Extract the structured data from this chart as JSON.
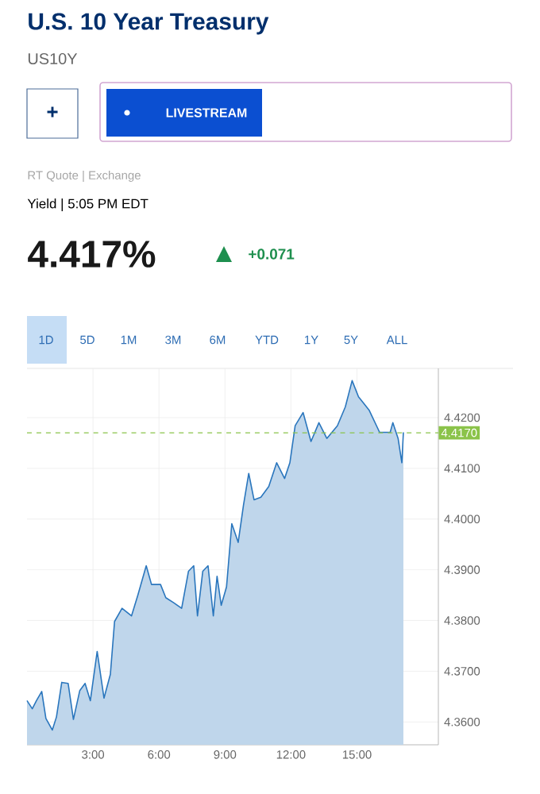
{
  "chart_data": {
    "type": "area",
    "title": "U.S. 10 Year Treasury",
    "subtitle": "US10Y",
    "annotations": [
      "+",
      "LIVESTREAM",
      "RT Quote | Exchange",
      "Yield | 5:05 PM EDT",
      "4.417%",
      "+0.071",
      "1D",
      "5D",
      "1M",
      "3M",
      "6M",
      "YTD",
      "1Y",
      "5Y",
      "ALL"
    ],
    "x": [
      0.0,
      0.24,
      0.43,
      0.67,
      0.86,
      1.15,
      1.34,
      1.58,
      1.87,
      2.11,
      2.4,
      2.64,
      2.88,
      3.19,
      3.5,
      3.79,
      3.98,
      4.32,
      4.75,
      5.04,
      5.42,
      5.66,
      6.07,
      6.31,
      6.67,
      7.03,
      7.34,
      7.58,
      7.75,
      7.99,
      8.23,
      8.47,
      8.64,
      8.83,
      9.07,
      9.31,
      9.6,
      9.84,
      10.08,
      10.32,
      10.63,
      10.99,
      11.35,
      11.71,
      11.95,
      12.19,
      12.55,
      12.91,
      13.27,
      13.63,
      14.11,
      14.47,
      14.78,
      15.07,
      15.55,
      16.03,
      16.51,
      16.63,
      16.87,
      17.04,
      17.11
    ],
    "series": [
      {
        "color": "#2a76bd",
        "values": [
          4.3642,
          4.3626,
          4.3642,
          4.366,
          4.3607,
          4.3584,
          4.361,
          4.3678,
          4.3676,
          4.3605,
          4.3662,
          4.3676,
          4.3642,
          4.3739,
          4.3647,
          4.3694,
          4.3798,
          4.3824,
          4.3809,
          4.385,
          4.3908,
          4.3871,
          4.3871,
          4.3845,
          4.3835,
          4.3824,
          4.3897,
          4.3908,
          4.3809,
          4.3897,
          4.3908,
          4.3809,
          4.3887,
          4.383,
          4.3866,
          4.3991,
          4.3954,
          4.4027,
          4.409,
          4.4038,
          4.4043,
          4.4064,
          4.4111,
          4.408,
          4.4111,
          4.4184,
          4.421,
          4.4153,
          4.419,
          4.4159,
          4.4184,
          4.4221,
          4.4273,
          4.4241,
          4.4215,
          4.4171,
          4.4171,
          4.419,
          4.4159,
          4.4111,
          4.4171
        ]
      }
    ],
    "xlim": [
      0,
      18.7
    ],
    "ylim": [
      4.3555,
      4.4297
    ],
    "xticks": [
      {
        "value": 3,
        "label": "3:00"
      },
      {
        "value": 6,
        "label": "6:00"
      },
      {
        "value": 9,
        "label": "9:00"
      },
      {
        "value": 12,
        "label": "12:00"
      },
      {
        "value": 15,
        "label": "15:00"
      }
    ],
    "yticks": [
      {
        "value": 4.36,
        "label": "4.3600"
      },
      {
        "value": 4.37,
        "label": "4.3700"
      },
      {
        "value": 4.38,
        "label": "4.3800"
      },
      {
        "value": 4.39,
        "label": "4.3900"
      },
      {
        "value": 4.4,
        "label": "4.4000"
      },
      {
        "value": 4.41,
        "label": "4.4100"
      },
      {
        "value": 4.42,
        "label": "4.4200"
      }
    ],
    "ref_lines": [
      {
        "axis": "y",
        "value": 4.417,
        "label": "4.4170",
        "color": "#8bc34a",
        "line_style": "dashed"
      }
    ],
    "grid": true,
    "marker": "none",
    "line_style": "solid"
  }
}
